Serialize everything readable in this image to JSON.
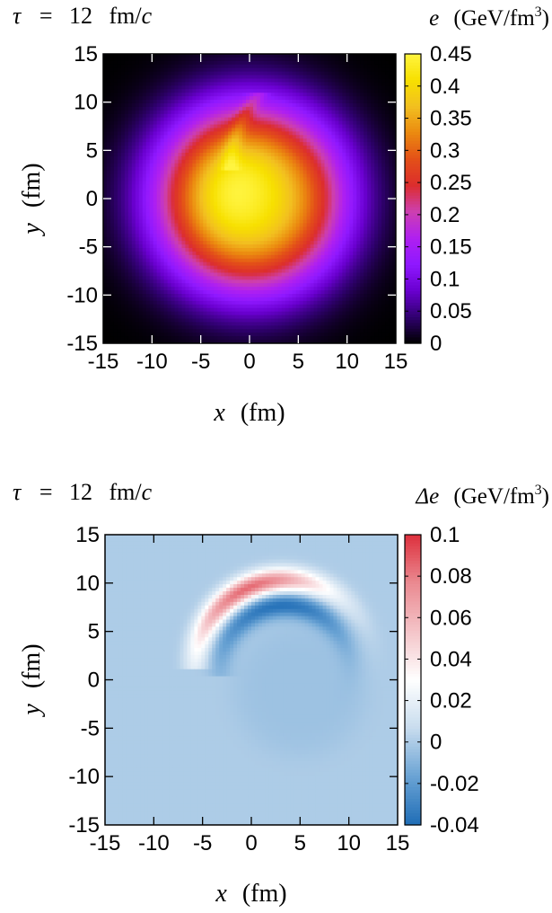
{
  "chart_data": [
    {
      "type": "heatmap",
      "quantity": "e",
      "title": {
        "symbol": "τ",
        "equals": "=",
        "value": "12",
        "unit_main": "fm/",
        "unit_italic": "c"
      },
      "colorbar_label": {
        "symbol": "e",
        "unit_main": "(GeV/fm",
        "unit_sup": "3",
        "unit_close": ")"
      },
      "xlabel": {
        "symbol": "x",
        "unit": "(fm)"
      },
      "ylabel": {
        "symbol": "y",
        "unit": "(fm)"
      },
      "xlim": [
        -15,
        15
      ],
      "ylim": [
        -15,
        15
      ],
      "xticks": [
        "-15",
        "-10",
        "-5",
        "0",
        "5",
        "10",
        "15"
      ],
      "yticks": [
        "15",
        "10",
        "5",
        "0",
        "-5",
        "-10",
        "-15"
      ],
      "colorbar_ticks": [
        "0.45",
        "0.4",
        "0.35",
        "0.3",
        "0.25",
        "0.2",
        "0.15",
        "0.1",
        "0.05",
        "0"
      ],
      "zlim": [
        0,
        0.45
      ],
      "colormap": [
        "#000000",
        "#300070",
        "#6a00d0",
        "#8f18ff",
        "#b020f0",
        "#cd3fb0",
        "#dc2d2d",
        "#e35018",
        "#eb8a10",
        "#f2c020",
        "#f7e000",
        "#fff440"
      ],
      "features": {
        "peak": 0.4,
        "center": [
          0,
          0
        ],
        "radius_half": 8.5,
        "spiral_tail": "thin tail rising from (-2,4) toward (1,11)"
      }
    },
    {
      "type": "heatmap",
      "quantity": "Δe",
      "title": {
        "symbol": "τ",
        "equals": "=",
        "value": "12",
        "unit_main": "fm/",
        "unit_italic": "c"
      },
      "colorbar_label": {
        "symbol": "Δe",
        "unit_main": "(GeV/fm",
        "unit_sup": "3",
        "unit_close": ")"
      },
      "xlabel": {
        "symbol": "x",
        "unit": "(fm)"
      },
      "ylabel": {
        "symbol": "y",
        "unit": "(fm)"
      },
      "xlim": [
        -15,
        15
      ],
      "ylim": [
        -15,
        15
      ],
      "xticks": [
        "-15",
        "-10",
        "-5",
        "0",
        "5",
        "10",
        "15"
      ],
      "yticks": [
        "15",
        "10",
        "5",
        "0",
        "-5",
        "-10",
        "-15"
      ],
      "colorbar_ticks": [
        "0.1",
        "0.08",
        "0.06",
        "0.04",
        "0.02",
        "0",
        "-0.02",
        "-0.04"
      ],
      "zlim": [
        -0.04,
        0.1
      ],
      "colormap": [
        "#1f6db6",
        "#6aa3d4",
        "#c8dcee",
        "#ffffff",
        "#f4c4c8",
        "#ea8a91",
        "#dd2f3c"
      ],
      "features": {
        "positive_band": "red crescent arc from (-3,0) over (1,10.5) to (6,9), peak ≈ 0.08",
        "negative_band": "blue crescent just inside it, from (-1,2) over (2,7) to (8,4), min ≈ -0.035",
        "background": "faint blue disk centered near (5,-1), radius ≈ 7, value ≈ -0.004"
      }
    }
  ]
}
